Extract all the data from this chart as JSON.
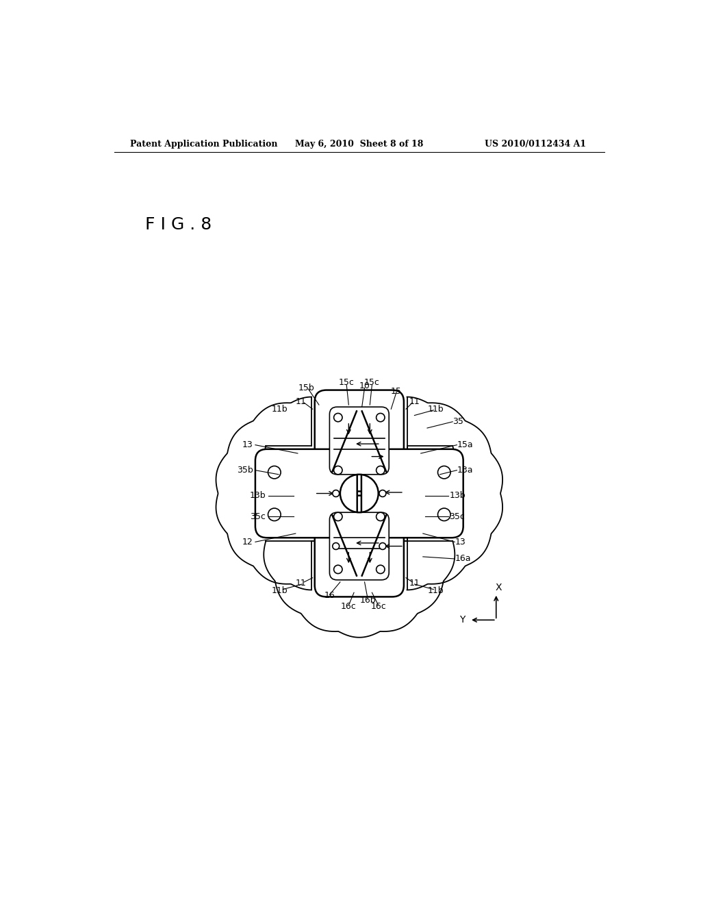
{
  "background_color": "#ffffff",
  "header_left": "Patent Application Publication",
  "header_center": "May 6, 2010  Sheet 8 of 18",
  "header_right": "US 2010/0112434 A1",
  "fig_label": "F I G . 8"
}
